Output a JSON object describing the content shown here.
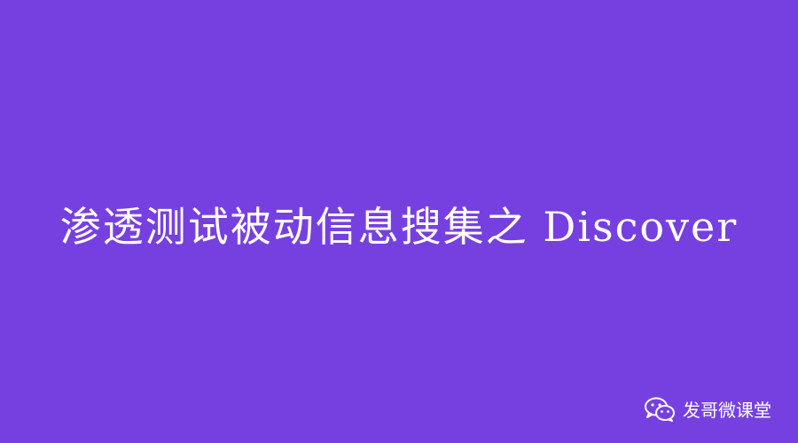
{
  "background_color": "#7640e0",
  "text_color": "#ffffff",
  "title": "渗透测试被动信息搜集之 Discover",
  "watermark": {
    "icon": "wechat-icon",
    "text": "发哥微课堂"
  }
}
